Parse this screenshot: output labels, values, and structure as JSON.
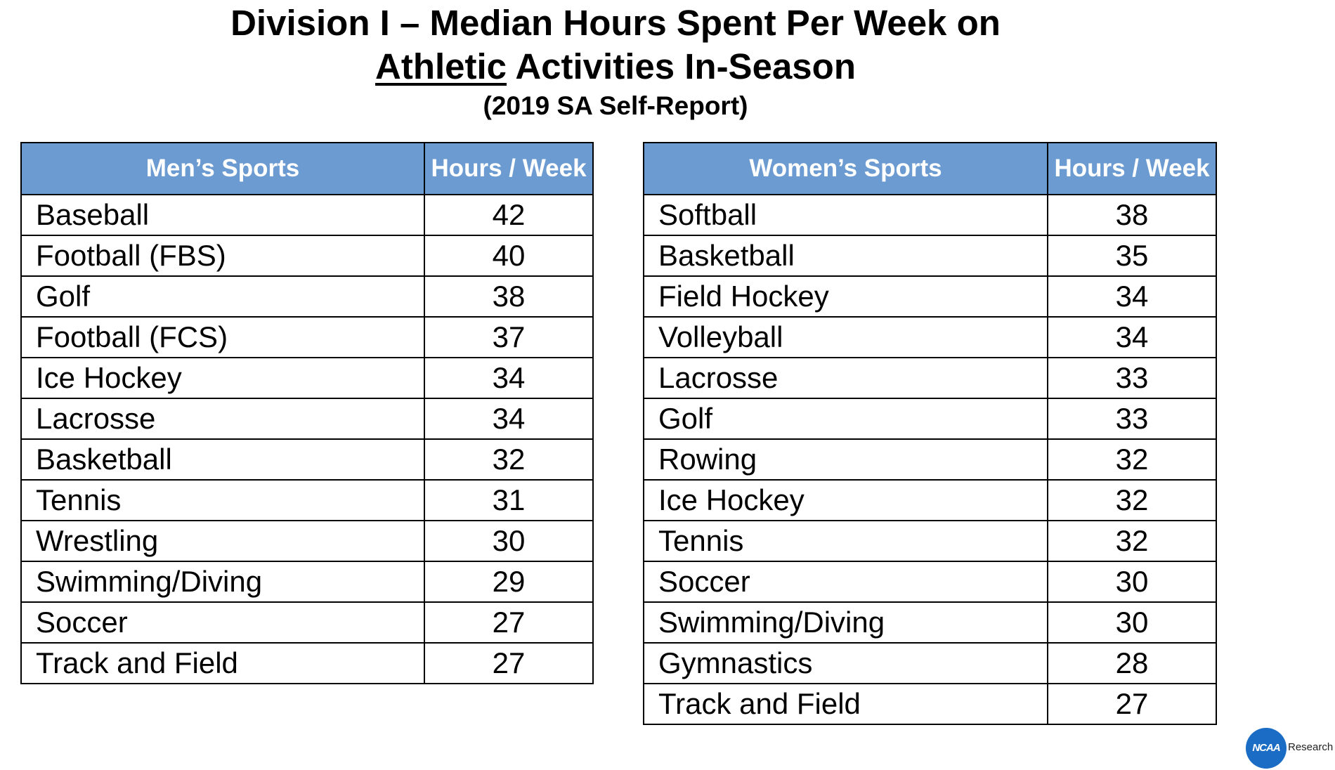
{
  "title": {
    "line1": "Division I – Median Hours Spent Per Week on",
    "line2_underlined": "Athletic",
    "line2_rest": " Activities In-Season",
    "subtitle": "(2019 SA Self-Report)"
  },
  "mens": {
    "header_sport": "Men’s Sports",
    "header_hours": "Hours / Week",
    "rows": [
      {
        "sport": "Baseball",
        "hours": "42"
      },
      {
        "sport": "Football (FBS)",
        "hours": "40"
      },
      {
        "sport": "Golf",
        "hours": "38"
      },
      {
        "sport": "Football (FCS)",
        "hours": "37"
      },
      {
        "sport": "Ice Hockey",
        "hours": "34"
      },
      {
        "sport": "Lacrosse",
        "hours": "34"
      },
      {
        "sport": "Basketball",
        "hours": "32"
      },
      {
        "sport": "Tennis",
        "hours": "31"
      },
      {
        "sport": "Wrestling",
        "hours": "30"
      },
      {
        "sport": "Swimming/Diving",
        "hours": "29"
      },
      {
        "sport": "Soccer",
        "hours": "27"
      },
      {
        "sport": "Track and Field",
        "hours": "27"
      }
    ]
  },
  "womens": {
    "header_sport": "Women’s Sports",
    "header_hours": "Hours / Week",
    "rows": [
      {
        "sport": "Softball",
        "hours": "38"
      },
      {
        "sport": "Basketball",
        "hours": "35"
      },
      {
        "sport": "Field Hockey",
        "hours": "34"
      },
      {
        "sport": "Volleyball",
        "hours": "34"
      },
      {
        "sport": "Lacrosse",
        "hours": "33"
      },
      {
        "sport": "Golf",
        "hours": "33"
      },
      {
        "sport": "Rowing",
        "hours": "32"
      },
      {
        "sport": "Ice Hockey",
        "hours": "32"
      },
      {
        "sport": "Tennis",
        "hours": "32"
      },
      {
        "sport": "Soccer",
        "hours": "30"
      },
      {
        "sport": "Swimming/Diving",
        "hours": "30"
      },
      {
        "sport": "Gymnastics",
        "hours": "28"
      },
      {
        "sport": "Track and Field",
        "hours": "27"
      }
    ]
  },
  "logo": {
    "badge": "NCAA",
    "text": "Research",
    "color": "#1b6cc4"
  },
  "colors": {
    "header_background": "#6c9bd2",
    "header_text": "#ffffff",
    "border": "#000000"
  }
}
